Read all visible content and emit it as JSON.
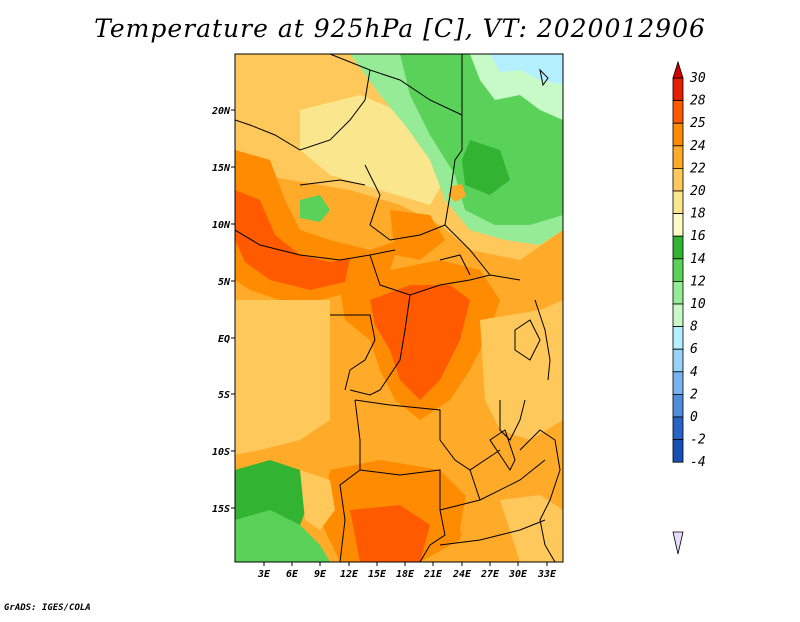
{
  "title": "Temperature at 925hPa [C], VT: 2020012906",
  "credit": "GrADS: IGES/COLA",
  "lat_labels": [
    "20N",
    "15N",
    "10N",
    "5N",
    "EQ",
    "5S",
    "10S",
    "15S"
  ],
  "lon_labels": [
    "3E",
    "6E",
    "9E",
    "12E",
    "15E",
    "18E",
    "21E",
    "24E",
    "27E",
    "30E",
    "33E"
  ],
  "colorbar": {
    "labels": [
      "30",
      "28",
      "25",
      "24",
      "22",
      "20",
      "18",
      "16",
      "14",
      "12",
      "10",
      "8",
      "6",
      "4",
      "2",
      "0",
      "-2",
      "-4"
    ],
    "colors": [
      "#a00000",
      "#e61e00",
      "#ff5a00",
      "#ff8c00",
      "#ffaa28",
      "#ffc85a",
      "#fae68c",
      "#fffac8",
      "#32b432",
      "#5ad25a",
      "#96eb96",
      "#c8fac8",
      "#b4f0ff",
      "#96d2fa",
      "#78b4f0",
      "#508cdc",
      "#2864c8",
      "#1450b4",
      "#0a2878",
      "#e6dcff"
    ],
    "overflow_high": "#d20000",
    "overflow_low": "#e6dcff"
  },
  "field_colors": {
    "hot": "#ff5a00",
    "warm_orange": "#ff8c00",
    "orange": "#ffaa28",
    "light_orange": "#ffc85a",
    "pale": "#fae68c",
    "green": "#32b432",
    "light_green": "#5ad25a",
    "pale_green": "#96eb96",
    "paler_green": "#c8fac8",
    "cyan": "#b4f0ff"
  }
}
